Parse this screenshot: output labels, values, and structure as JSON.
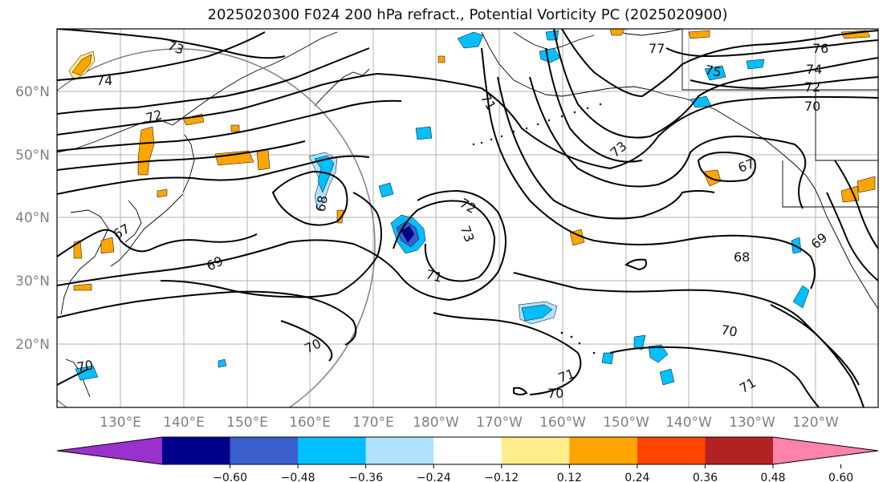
{
  "title": "2025020300 F024 200 hPa refract., Potential Vorticity PC (2025020900)",
  "lat_labels": [
    "60°N",
    "50°N",
    "40°N",
    "30°N",
    "20°N"
  ],
  "lon_labels": [
    "130°E",
    "140°E",
    "150°E",
    "160°E",
    "170°E",
    "180°W",
    "170°W",
    "160°W",
    "150°W",
    "140°W",
    "130°W",
    "120°W"
  ],
  "contour_labels": [
    "73",
    "74",
    "72",
    "68",
    "67",
    "69",
    "70",
    "71",
    "72",
    "73",
    "71",
    "70",
    "70",
    "71",
    "73",
    "77",
    "76",
    "75",
    "74",
    "72",
    "70",
    "67",
    "68",
    "69",
    "70",
    "71"
  ],
  "colorbar": {
    "ticks": [
      "−0.60",
      "−0.48",
      "−0.36",
      "−0.24",
      "−0.12",
      "0.12",
      "0.24",
      "0.36",
      "0.48",
      "0.60"
    ],
    "colors": [
      "#9932CC",
      "#00008B",
      "#3A5FCD",
      "#00BFFF",
      "#B0E2FF",
      "#FFFFFF",
      "#FFEC8B",
      "#FFA500",
      "#FF4500",
      "#B22222",
      "#FF82AB"
    ]
  }
}
